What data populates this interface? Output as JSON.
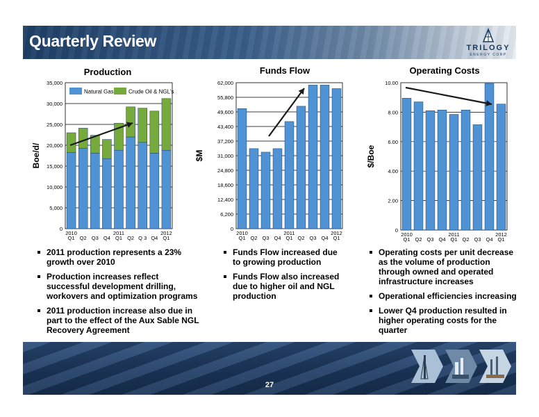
{
  "slide": {
    "title": "Quarterly Review",
    "page_number": "27",
    "logo": {
      "name": "TRILOGY",
      "sub": "ENERGY CORP"
    }
  },
  "chart_data": [
    {
      "type": "bar",
      "stacked": true,
      "title": "Production",
      "ylabel": "Boe/d/",
      "xlabel": "",
      "ylim": [
        0,
        35000
      ],
      "yticks": [
        "0",
        "5,000",
        "10,000",
        "15,000",
        "20,000",
        "25,000",
        "30,000",
        "35,000"
      ],
      "ytick_values": [
        0,
        5000,
        10000,
        15000,
        20000,
        25000,
        30000,
        35000
      ],
      "categories": [
        "Q1",
        "Q2",
        "Q3",
        "Q4",
        "Q1",
        "Q2",
        "Q 3",
        "Q4",
        "Q1"
      ],
      "year_labels": [
        {
          "label": "2010",
          "index": 0
        },
        {
          "label": "2011",
          "index": 4
        },
        {
          "label": "2012",
          "index": 8
        }
      ],
      "legend": {
        "placement": "top",
        "entries": [
          "Natural Gas",
          "Crude Oil & NGL's"
        ]
      },
      "series": [
        {
          "name": "Natural Gas",
          "color": "#4f93d5",
          "values": [
            18300,
            19300,
            18100,
            16800,
            18800,
            22000,
            20700,
            18100,
            18800
          ]
        },
        {
          "name": "Crude Oil & NGL's",
          "color": "#77aa3c",
          "values": [
            4700,
            4800,
            4300,
            4600,
            6500,
            7200,
            8200,
            10100,
            12400
          ]
        }
      ],
      "trend_arrow": "up",
      "grid": true
    },
    {
      "type": "bar",
      "title": "Funds Flow",
      "ylabel": "$M",
      "xlabel": "",
      "ylim": [
        0,
        62000
      ],
      "yticks": [
        "0",
        "6,200",
        "12,400",
        "18,600",
        "24,800",
        "31,000",
        "37,200",
        "43,400",
        "49,600",
        "55,800",
        "62,000"
      ],
      "ytick_values": [
        0,
        6200,
        12400,
        18600,
        24800,
        31000,
        37200,
        43400,
        49600,
        55800,
        62000
      ],
      "categories": [
        "Q1",
        "Q2",
        "Q3",
        "Q4",
        "Q1",
        "Q2",
        "Q3",
        "Q4",
        "Q1"
      ],
      "year_labels": [
        {
          "label": "2010",
          "index": 0
        },
        {
          "label": "2011",
          "index": 4
        },
        {
          "label": "2012",
          "index": 8
        }
      ],
      "series": [
        {
          "color": "#4f93d5",
          "values": [
            51000,
            34000,
            32500,
            34000,
            45500,
            52000,
            61000,
            61000,
            59500
          ]
        }
      ],
      "trend_arrow": "up",
      "grid": true
    },
    {
      "type": "bar",
      "title": "Operating Costs",
      "ylabel": "$/Boe",
      "xlabel": "",
      "ylim": [
        0,
        10
      ],
      "yticks": [
        "0",
        "2.00",
        "4.00",
        "6.00",
        "8.00",
        "10.00"
      ],
      "ytick_values": [
        0,
        2,
        4,
        6,
        8,
        10
      ],
      "categories": [
        "Q1",
        "Q2",
        "Q3",
        "Q4",
        "Q1",
        "Q2",
        "Q3",
        "Q4",
        "Q1"
      ],
      "year_labels": [
        {
          "label": "2010",
          "index": 0
        },
        {
          "label": "2011",
          "index": 4
        },
        {
          "label": "2012",
          "index": 8
        }
      ],
      "series": [
        {
          "color": "#4f93d5",
          "values": [
            8.95,
            8.7,
            8.1,
            8.15,
            7.85,
            8.15,
            7.15,
            9.95,
            8.55
          ]
        }
      ],
      "trend_arrow": "down",
      "grid": true
    }
  ],
  "bullets": {
    "production": [
      "2011 production represents a 23% growth over 2010",
      "Production increases reflect successful development drilling, workovers and optimization programs",
      "2011 production increase also due in part to the effect of the Aux Sable NGL Recovery Agreement"
    ],
    "funds_flow": [
      "Funds Flow increased due to growing production",
      " Funds Flow also increased due to  higher oil and NGL production"
    ],
    "operating_costs": [
      "Operating costs per unit decrease as the volume of production through owned and operated infrastructure increases",
      "Operational efficiencies increasing",
      "Lower Q4 production resulted in higher operating costs for the quarter"
    ]
  }
}
